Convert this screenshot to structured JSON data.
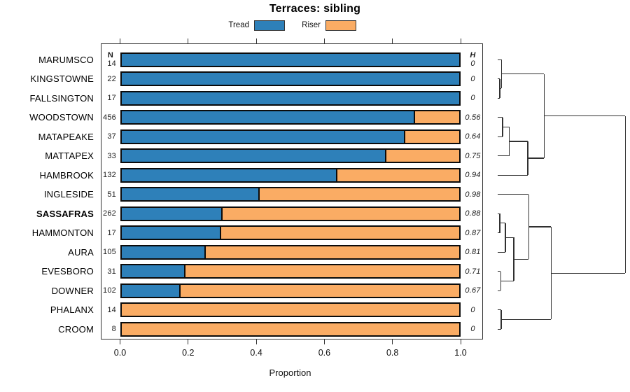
{
  "chart_data": {
    "type": "bar",
    "orientation": "horizontal-stacked",
    "title": "Terraces: sibling",
    "xlabel": "Proportion",
    "xlim": [
      0,
      1
    ],
    "x_ticks": [
      "0.0",
      "0.2",
      "0.4",
      "0.6",
      "0.8",
      "1.0"
    ],
    "grid": false,
    "legend_position": "top-center",
    "legend": [
      {
        "label": "Tread",
        "color": "#2E80B9"
      },
      {
        "label": "Riser",
        "color": "#FAAC64"
      }
    ],
    "n_header": "N",
    "h_header": "H",
    "rows": [
      {
        "category": "MARUMSCO",
        "n": "14",
        "tread": 1.0,
        "riser": 0.0,
        "h": "0"
      },
      {
        "category": "KINGSTOWNE",
        "n": "22",
        "tread": 1.0,
        "riser": 0.0,
        "h": "0"
      },
      {
        "category": "FALLSINGTON",
        "n": "17",
        "tread": 1.0,
        "riser": 0.0,
        "h": "0"
      },
      {
        "category": "WOODSTOWN",
        "n": "456",
        "tread": 0.87,
        "riser": 0.13,
        "h": "0.56"
      },
      {
        "category": "MATAPEAKE",
        "n": "37",
        "tread": 0.84,
        "riser": 0.16,
        "h": "0.64"
      },
      {
        "category": "MATTAPEX",
        "n": "33",
        "tread": 0.785,
        "riser": 0.215,
        "h": "0.75"
      },
      {
        "category": "HAMBROOK",
        "n": "132",
        "tread": 0.64,
        "riser": 0.36,
        "h": "0.94"
      },
      {
        "category": "INGLESIDE",
        "n": "51",
        "tread": 0.41,
        "riser": 0.59,
        "h": "0.98"
      },
      {
        "category": "SASSAFRAS",
        "n": "262",
        "tread": 0.3,
        "riser": 0.7,
        "h": "0.88",
        "bold": true
      },
      {
        "category": "HAMMONTON",
        "n": "17",
        "tread": 0.295,
        "riser": 0.705,
        "h": "0.87"
      },
      {
        "category": "AURA",
        "n": "105",
        "tread": 0.25,
        "riser": 0.75,
        "h": "0.81"
      },
      {
        "category": "EVESBORO",
        "n": "31",
        "tread": 0.19,
        "riser": 0.81,
        "h": "0.71"
      },
      {
        "category": "DOWNER",
        "n": "102",
        "tread": 0.175,
        "riser": 0.825,
        "h": "0.67"
      },
      {
        "category": "PHALANX",
        "n": "14",
        "tread": 0.0,
        "riser": 1.0,
        "h": "0"
      },
      {
        "category": "CROOM",
        "n": "8",
        "tread": 0.0,
        "riser": 1.0,
        "h": "0"
      }
    ],
    "dendrogram": {
      "note": "merge heights normalized 0-1 (leaf to root)",
      "merges": [
        {
          "id": "m1",
          "children": [
            "KINGSTOWNE",
            "FALLSINGTON"
          ],
          "h": 0.016
        },
        {
          "id": "m2",
          "children": [
            "MARUMSCO",
            "m1"
          ],
          "h": 0.03
        },
        {
          "id": "m3",
          "children": [
            "WOODSTOWN",
            "MATAPEAKE"
          ],
          "h": 0.038
        },
        {
          "id": "m4",
          "children": [
            "m3",
            "MATTAPEX"
          ],
          "h": 0.088
        },
        {
          "id": "m5",
          "children": [
            "m4",
            "HAMBROOK"
          ],
          "h": 0.236
        },
        {
          "id": "m6",
          "children": [
            "m2",
            "m5"
          ],
          "h": 0.363
        },
        {
          "id": "m7",
          "children": [
            "SASSAFRAS",
            "HAMMONTON"
          ],
          "h": 0.016
        },
        {
          "id": "m8",
          "children": [
            "m7",
            "AURA"
          ],
          "h": 0.06
        },
        {
          "id": "m9",
          "children": [
            "EVESBORO",
            "DOWNER"
          ],
          "h": 0.022
        },
        {
          "id": "m10",
          "children": [
            "m8",
            "m9"
          ],
          "h": 0.126
        },
        {
          "id": "m11",
          "children": [
            "INGLESIDE",
            "m10"
          ],
          "h": 0.242
        },
        {
          "id": "m12",
          "children": [
            "PHALANX",
            "CROOM"
          ],
          "h": 0.027
        },
        {
          "id": "m13",
          "children": [
            "m11",
            "m12"
          ],
          "h": 0.418
        },
        {
          "id": "root",
          "children": [
            "m6",
            "m13"
          ],
          "h": 1.0
        }
      ]
    }
  }
}
